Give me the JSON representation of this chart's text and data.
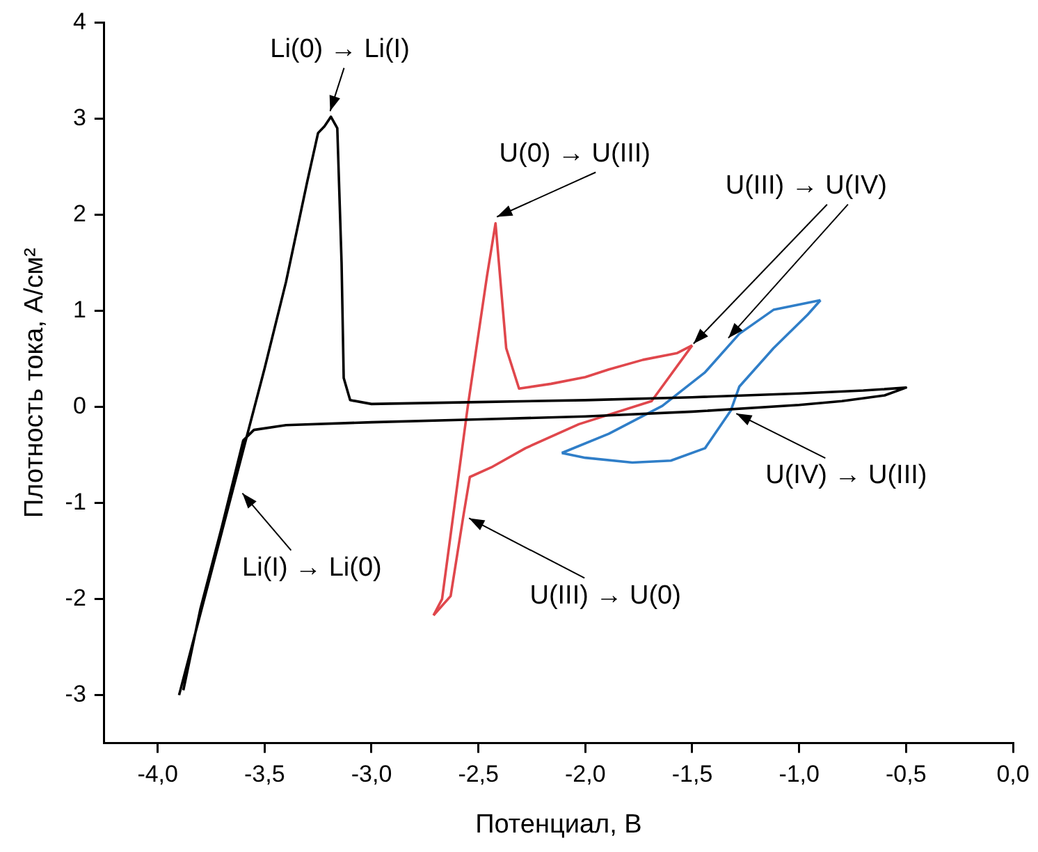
{
  "chart_data": {
    "type": "line",
    "xlabel": "Потенциал, В",
    "ylabel": "Плотность тока, А/см²",
    "xlim": [
      -4.25,
      0
    ],
    "ylim": [
      -3.5,
      4
    ],
    "xticks": [
      {
        "value": -4,
        "label": "-4,0"
      },
      {
        "value": -3.5,
        "label": "-3,5"
      },
      {
        "value": -3,
        "label": "-3,0"
      },
      {
        "value": -2.5,
        "label": "-2,5"
      },
      {
        "value": -2,
        "label": "-2,0"
      },
      {
        "value": -1.5,
        "label": "-1,5"
      },
      {
        "value": -1,
        "label": "-1,0"
      },
      {
        "value": -0.5,
        "label": "-0,5"
      },
      {
        "value": 0,
        "label": "0,0"
      }
    ],
    "yticks": [
      -3,
      -2,
      -1,
      0,
      1,
      2,
      3,
      4
    ],
    "grid": false,
    "legend": false,
    "marker": "none",
    "line_style": "solid",
    "series": [
      {
        "color": "#000000",
        "x": [
          -3.9,
          -3.7,
          -3.5,
          -3.4,
          -3.3,
          -3.25,
          -3.22,
          -3.19,
          -3.16,
          -3.14,
          -3.13,
          -3.1,
          -3.0,
          -2.5,
          -2.0,
          -1.5,
          -1.0,
          -0.7,
          -0.5,
          -0.6,
          -0.8,
          -1.0,
          -1.5,
          -2.0,
          -2.5,
          -3.0,
          -3.4,
          -3.55,
          -3.6,
          -3.7,
          -3.8,
          -3.88
        ],
        "values": [
          -3.0,
          -1.3,
          0.4,
          1.3,
          2.35,
          2.85,
          2.92,
          3.02,
          2.9,
          1.5,
          0.3,
          0.07,
          0.03,
          0.05,
          0.07,
          0.1,
          0.14,
          0.17,
          0.2,
          0.12,
          0.06,
          0.02,
          -0.05,
          -0.1,
          -0.13,
          -0.16,
          -0.19,
          -0.24,
          -0.35,
          -1.25,
          -2.1,
          -2.95
        ]
      },
      {
        "color": "#e0474c",
        "x": [
          -1.5,
          -1.69,
          -2.03,
          -2.28,
          -2.44,
          -2.54,
          -2.57,
          -2.63,
          -2.71
        ],
        "values": [
          0.64,
          0.06,
          -0.18,
          -0.43,
          -0.63,
          -0.73,
          -1.13,
          -1.97,
          -2.17
        ]
      },
      {
        "color": "#e0474c",
        "x": [
          -2.71,
          -2.67,
          -2.61,
          -2.55,
          -2.46,
          -2.42,
          -2.37,
          -2.31,
          -2.16,
          -2.0,
          -1.89,
          -1.73,
          -1.57,
          -1.5
        ],
        "values": [
          -2.17,
          -2.0,
          -1.0,
          0.0,
          1.36,
          1.91,
          0.61,
          0.19,
          0.24,
          0.31,
          0.39,
          0.49,
          0.56,
          0.64
        ]
      },
      {
        "color": "#2f7ec8",
        "x": [
          -2.11,
          -1.89,
          -1.64,
          -1.44,
          -1.28,
          -1.12,
          -0.9
        ],
        "values": [
          -0.48,
          -0.28,
          0.01,
          0.36,
          0.76,
          1.01,
          1.11
        ]
      },
      {
        "color": "#2f7ec8",
        "x": [
          -0.9,
          -0.96,
          -1.12,
          -1.28,
          -1.32,
          -1.44,
          -1.6,
          -1.78,
          -2.0,
          -2.11
        ],
        "values": [
          1.11,
          0.96,
          0.61,
          0.21,
          -0.04,
          -0.43,
          -0.56,
          -0.58,
          -0.53,
          -0.48
        ]
      }
    ],
    "annotations": [
      {
        "text": "Li(0) → Li(I)",
        "x": -3.2,
        "y": 3.02
      },
      {
        "text": "U(0) → U(III)",
        "x": -2.42,
        "y": 1.92
      },
      {
        "text": "U(III) → U(IV)",
        "x": -1.52,
        "y": 0.6
      },
      {
        "text": "U(IV) → U(III)",
        "x": -1.32,
        "y": -0.04
      },
      {
        "text": "U(III) → U(0)",
        "x": -2.57,
        "y": -1.13
      },
      {
        "text": "Li(I) → Li(0)",
        "x": -3.63,
        "y": -0.87
      }
    ]
  }
}
